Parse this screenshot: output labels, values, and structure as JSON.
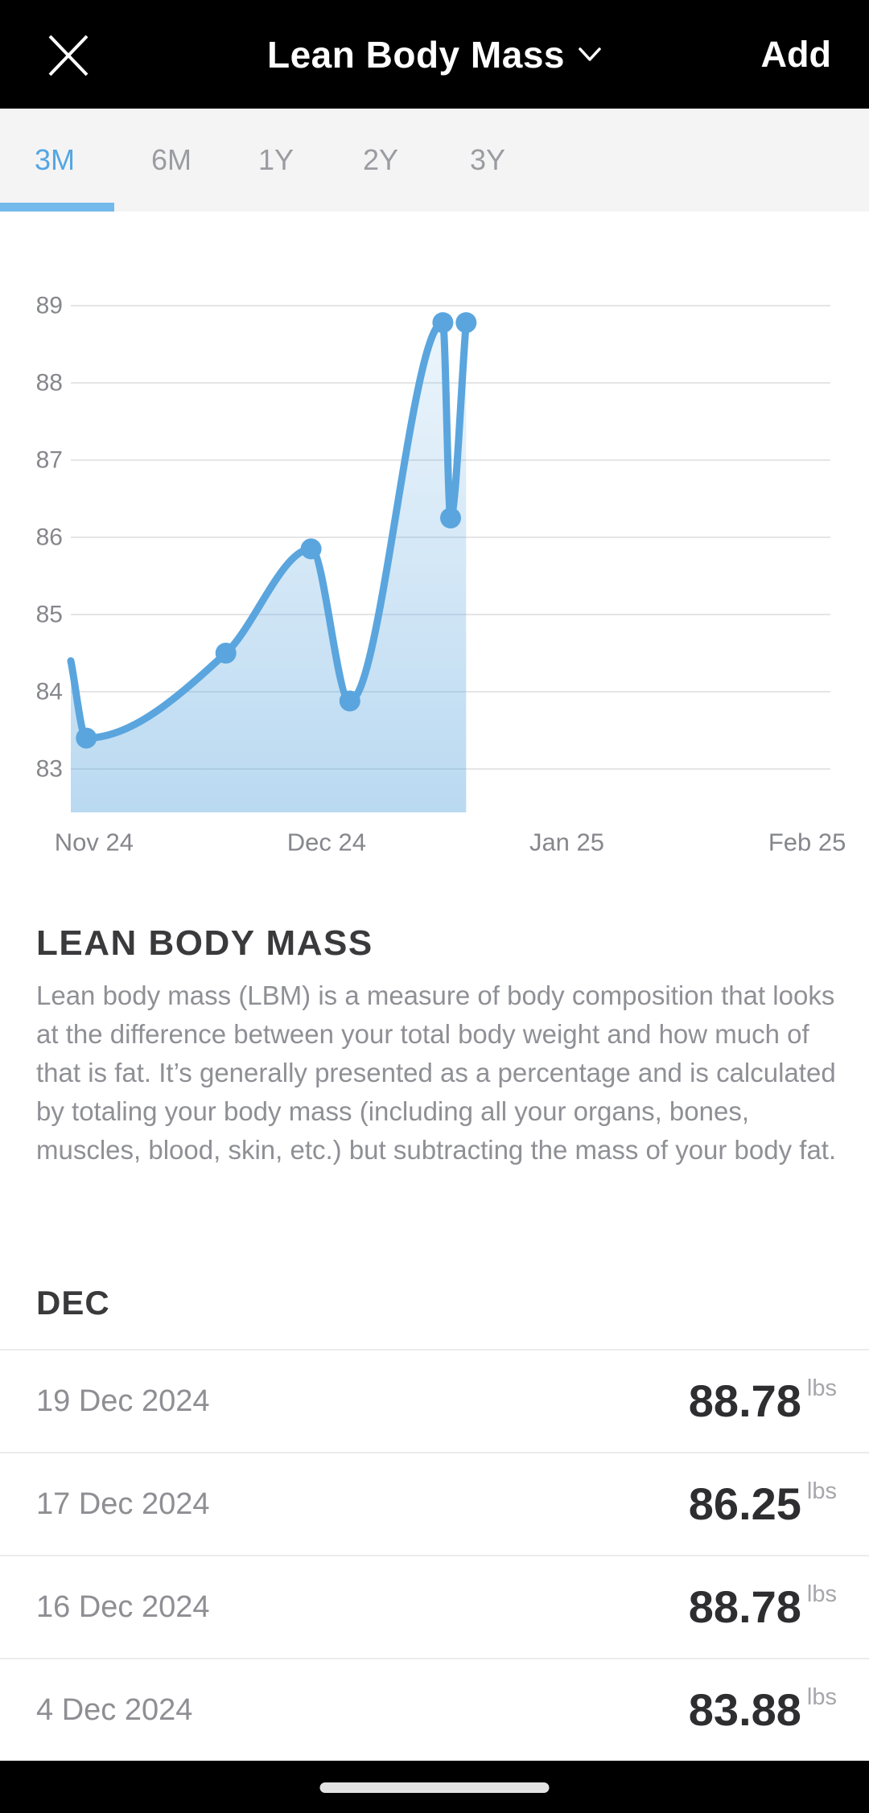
{
  "header": {
    "title": "Lean Body Mass",
    "add_label": "Add"
  },
  "tabs": {
    "items": [
      {
        "label": "3M",
        "active": true
      },
      {
        "label": "6M",
        "active": false
      },
      {
        "label": "1Y",
        "active": false
      },
      {
        "label": "2Y",
        "active": false
      },
      {
        "label": "3Y",
        "active": false
      }
    ]
  },
  "chart_data": {
    "type": "area",
    "title": "Lean Body Mass, 3 month view",
    "xlabel": "",
    "ylabel": "",
    "unit": "lbs",
    "grid": true,
    "legend": false,
    "ylim": [
      83,
      89
    ],
    "yticks": [
      89,
      88,
      87,
      86,
      85,
      84,
      83
    ],
    "x_range": [
      "2024-10-29",
      "2025-02-04"
    ],
    "xticks": [
      {
        "label": "Nov 24",
        "date": "2024-11-01"
      },
      {
        "label": "Dec 24",
        "date": "2024-12-01"
      },
      {
        "label": "Jan 25",
        "date": "2025-01-01"
      },
      {
        "label": "Feb 25",
        "date": "2025-02-01"
      }
    ],
    "series": [
      {
        "name": "Lean Body Mass",
        "points": [
          {
            "date": "2024-10-29",
            "value": 84.4,
            "marker": false
          },
          {
            "date": "2024-10-31",
            "value": 83.4,
            "marker": true
          },
          {
            "date": "2024-11-18",
            "value": 84.5,
            "marker": true
          },
          {
            "date": "2024-11-29",
            "value": 85.85,
            "marker": true
          },
          {
            "date": "2024-12-04",
            "value": 83.88,
            "marker": true
          },
          {
            "date": "2024-12-16",
            "value": 88.78,
            "marker": true
          },
          {
            "date": "2024-12-17",
            "value": 86.25,
            "marker": true
          },
          {
            "date": "2024-12-19",
            "value": 88.78,
            "marker": true
          }
        ]
      }
    ]
  },
  "about": {
    "heading": "LEAN BODY MASS",
    "body": "Lean body mass (LBM) is a measure of body composition that looks at the difference between your total body weight and how much of that is fat. It’s generally presented as a percentage and is calculated by totaling your body mass (including all your organs, bones, muscles, blood, skin, etc.) but subtracting the mass of your body fat."
  },
  "list": {
    "section_label": "DEC",
    "unit": "lbs",
    "rows": [
      {
        "date": "19 Dec 2024",
        "value": "88.78"
      },
      {
        "date": "17 Dec 2024",
        "value": "86.25"
      },
      {
        "date": "16 Dec 2024",
        "value": "88.78"
      },
      {
        "date": "4 Dec 2024",
        "value": "83.88"
      }
    ]
  },
  "colors": {
    "accent_text": "#55a6e2",
    "accent_underline": "#74b9ec",
    "chart_line": "#5aa5de",
    "gridline": "#e5e5e7",
    "axis_label": "#86878c",
    "header_bg": "#000000"
  }
}
